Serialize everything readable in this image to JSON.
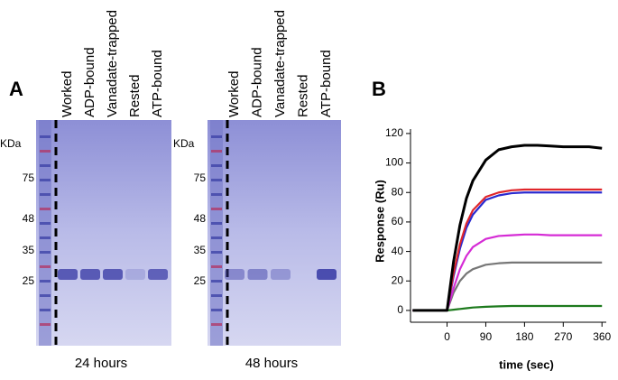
{
  "panel_a": {
    "label": "A",
    "unit": "KDa",
    "markers": [
      75,
      48,
      35,
      25
    ],
    "gels": [
      {
        "lanes": [
          "Worked",
          "ADP-bound",
          "Vanadate-trapped",
          "Rested",
          "ATP-bound"
        ],
        "caption": "24 hours"
      },
      {
        "lanes": [
          "Worked",
          "ADP-bound",
          "Vanadate-trapped",
          "Rested",
          "ATP-bound"
        ],
        "caption": "48 hours"
      }
    ]
  },
  "panel_b_label": "B",
  "chart_data": {
    "type": "line",
    "x_label": "time (sec)",
    "y_label": "Response (Ru)",
    "x": [
      -80,
      -40,
      0,
      15,
      30,
      45,
      60,
      90,
      120,
      150,
      180,
      210,
      240,
      270,
      300,
      330,
      360
    ],
    "xlim": [
      -85,
      370
    ],
    "xticks": [
      0,
      90,
      180,
      270,
      360
    ],
    "ylim": [
      -8,
      123
    ],
    "yticks": [
      0,
      20,
      40,
      60,
      80,
      100,
      120
    ],
    "series": [
      {
        "color": "#000000",
        "values": [
          0,
          0,
          0,
          33,
          58,
          76,
          88,
          102,
          109,
          111,
          112,
          112,
          111.5,
          111,
          111,
          111,
          110
        ]
      },
      {
        "color": "#e0262b",
        "values": [
          0,
          0,
          0,
          25,
          45,
          59,
          68,
          77,
          80,
          81.5,
          82,
          82,
          82,
          82,
          82,
          82,
          82
        ]
      },
      {
        "color": "#2a2ad0",
        "values": [
          0,
          0,
          0,
          23,
          42,
          56,
          65,
          75,
          78,
          79.5,
          80,
          80,
          80,
          80,
          80,
          80,
          80
        ]
      },
      {
        "color": "#d52bd5",
        "values": [
          0,
          0,
          0,
          15,
          28,
          37,
          43,
          48.5,
          50.5,
          51,
          51.5,
          51.5,
          51,
          51,
          51,
          51,
          51
        ]
      },
      {
        "color": "#777777",
        "values": [
          0,
          0,
          0,
          12,
          20,
          25,
          28,
          31,
          32,
          32.5,
          32.5,
          32.5,
          32.5,
          32.5,
          32.5,
          32.5,
          32.5
        ]
      },
      {
        "color": "#1d7a1d",
        "values": [
          0,
          0,
          0,
          0.5,
          1,
          1.5,
          2,
          2.5,
          2.8,
          3,
          3,
          3,
          3,
          3,
          3,
          3,
          3
        ]
      }
    ]
  }
}
